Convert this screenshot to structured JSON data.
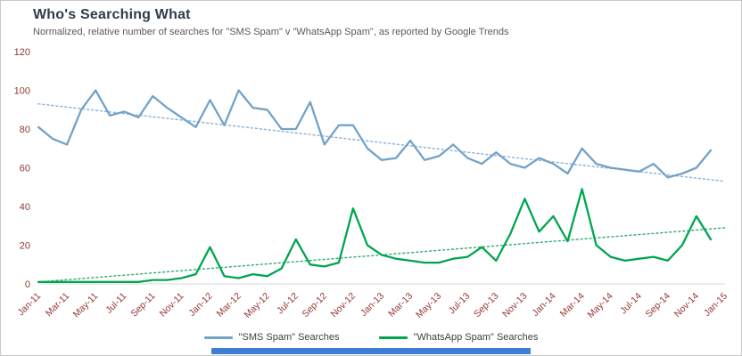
{
  "header": {
    "title": "Who's Searching What",
    "subtitle": "Normalized, relative number of searches for \"SMS Spam\" v \"WhatsApp Spam\", as reported by Google Trends"
  },
  "chart_data": {
    "type": "line",
    "title": "Who's Searching What",
    "subtitle": "Normalized, relative number of searches for \"SMS Spam\" v \"WhatsApp Spam\", as reported by Google Trends",
    "x": [
      "Jan-11",
      "Feb-11",
      "Mar-11",
      "Apr-11",
      "May-11",
      "Jun-11",
      "Jul-11",
      "Aug-11",
      "Sep-11",
      "Oct-11",
      "Nov-11",
      "Dec-11",
      "Jan-12",
      "Feb-12",
      "Mar-12",
      "Apr-12",
      "May-12",
      "Jun-12",
      "Jul-12",
      "Aug-12",
      "Sep-12",
      "Oct-12",
      "Nov-12",
      "Dec-12",
      "Jan-13",
      "Feb-13",
      "Mar-13",
      "Apr-13",
      "May-13",
      "Jun-13",
      "Jul-13",
      "Aug-13",
      "Sep-13",
      "Oct-13",
      "Nov-13",
      "Dec-13",
      "Jan-14",
      "Feb-14",
      "Mar-14",
      "Apr-14",
      "May-14",
      "Jun-14",
      "Jul-14",
      "Aug-14",
      "Sep-14",
      "Oct-14",
      "Nov-14",
      "Dec-14"
    ],
    "x_tick_labels": [
      "Jan-11",
      "Mar-11",
      "May-11",
      "Jul-11",
      "Sep-11",
      "Nov-11",
      "Jan-12",
      "Mar-12",
      "May-12",
      "Jul-12",
      "Sep-12",
      "Nov-12",
      "Jan-13",
      "Mar-13",
      "May-13",
      "Jul-13",
      "Sep-13",
      "Nov-13",
      "Jan-14",
      "Mar-14",
      "May-14",
      "Jul-14",
      "Sep-14",
      "Nov-14",
      "Jan-15"
    ],
    "series": [
      {
        "name": "\"SMS Spam\" Searches",
        "color": "#73a2c9",
        "values": [
          81,
          75,
          72,
          90,
          100,
          87,
          89,
          86,
          97,
          91,
          86,
          81,
          95,
          82,
          100,
          91,
          90,
          80,
          80,
          94,
          72,
          82,
          82,
          70,
          64,
          65,
          74,
          64,
          66,
          72,
          65,
          62,
          68,
          62,
          60,
          65,
          62,
          57,
          70,
          62,
          60,
          59,
          58,
          62,
          55,
          57,
          60,
          69
        ]
      },
      {
        "name": "\"WhatsApp Spam\" Searches",
        "color": "#00a550",
        "values": [
          1,
          1,
          1,
          1,
          1,
          1,
          1,
          1,
          2,
          2,
          3,
          5,
          19,
          4,
          3,
          5,
          4,
          8,
          23,
          10,
          9,
          11,
          39,
          20,
          15,
          13,
          12,
          11,
          11,
          13,
          14,
          19,
          12,
          26,
          44,
          27,
          35,
          22,
          49,
          20,
          14,
          12,
          13,
          14,
          12,
          20,
          35,
          23
        ]
      }
    ],
    "trendlines": [
      {
        "name": "sms-trendline",
        "start": 93,
        "end": 53,
        "color": "#8ab1d4"
      },
      {
        "name": "whatsapp-trendline",
        "start": 1,
        "end": 29,
        "color": "#2fae6e"
      }
    ],
    "ylim": [
      0,
      120
    ],
    "yticks": [
      0,
      20,
      40,
      60,
      80,
      100,
      120
    ],
    "grid": false,
    "legend_position": "bottom",
    "axis_label_color": "#953735",
    "axis_line_color": "#d9d9d9"
  },
  "scrollbar": {
    "color": "#3f7ed5"
  }
}
